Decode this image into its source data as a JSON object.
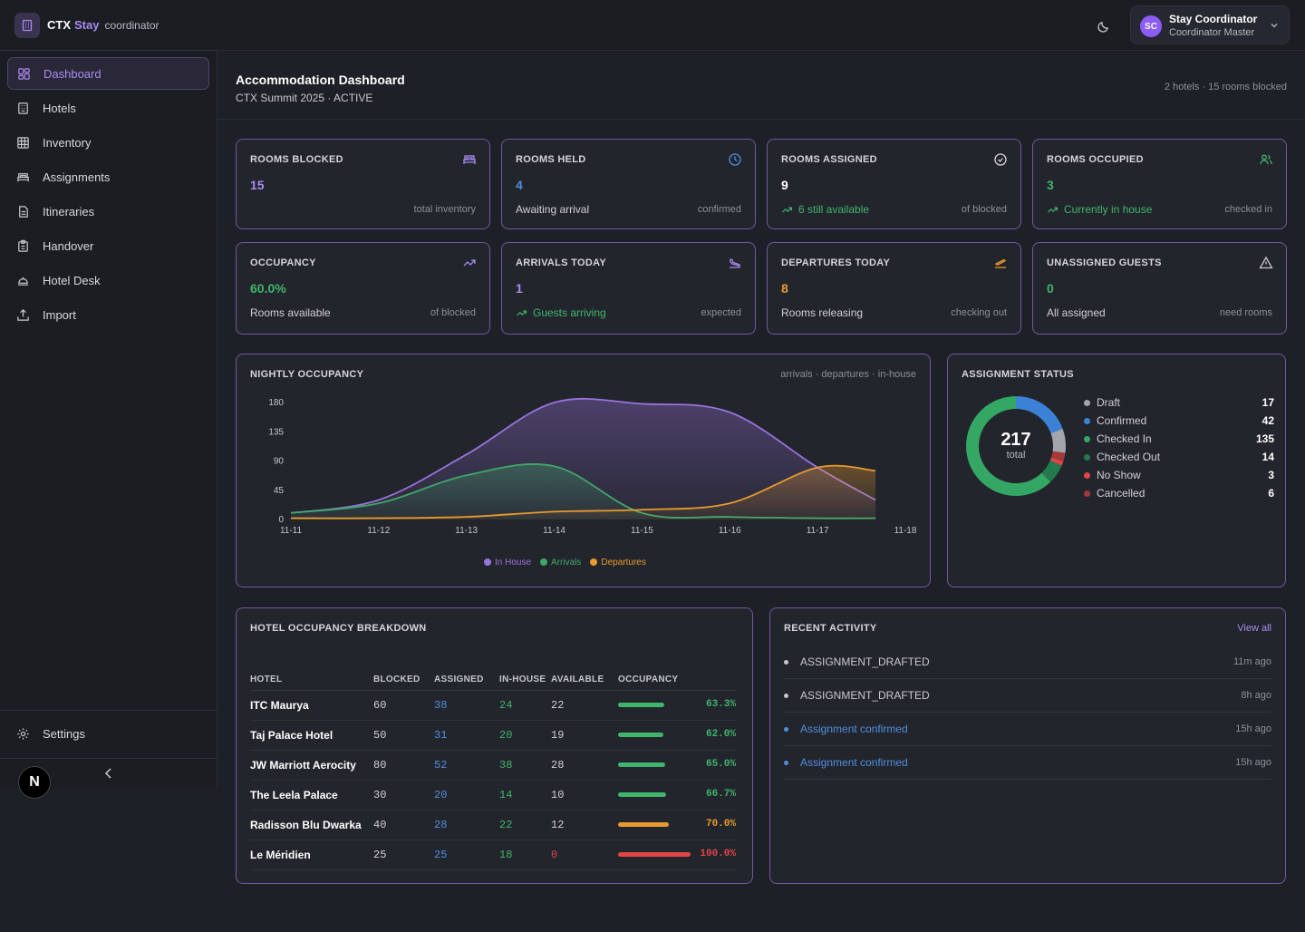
{
  "brand": {
    "ctx": "CTX",
    "stay": "Stay",
    "role": "coordinator"
  },
  "user": {
    "initials": "SC",
    "name": "Stay Coordinator",
    "role": "Coordinator Master"
  },
  "sidebar": {
    "items": [
      {
        "label": "Dashboard",
        "icon": "dashboard-icon",
        "active": true
      },
      {
        "label": "Hotels",
        "icon": "hotels-icon"
      },
      {
        "label": "Inventory",
        "icon": "grid-icon"
      },
      {
        "label": "Assignments",
        "icon": "bed-icon"
      },
      {
        "label": "Itineraries",
        "icon": "document-icon"
      },
      {
        "label": "Handover",
        "icon": "clipboard-icon"
      },
      {
        "label": "Hotel Desk",
        "icon": "bell-icon"
      },
      {
        "label": "Import",
        "icon": "upload-icon"
      }
    ],
    "settings_label": "Settings",
    "badge": "N"
  },
  "header": {
    "title": "Accommodation Dashboard",
    "subtitle": "CTX Summit 2025 · ACTIVE",
    "meta": "2 hotels · 15 rooms blocked"
  },
  "kpis": [
    {
      "label": "ROOMS BLOCKED",
      "value": "15",
      "desc": "",
      "note": "total inventory",
      "color": "#a98bf0",
      "icon": "bed-icon"
    },
    {
      "label": "ROOMS HELD",
      "value": "4",
      "desc": "Awaiting arrival",
      "note": "confirmed",
      "color": "#4f8fde",
      "icon": "clock-icon"
    },
    {
      "label": "ROOMS ASSIGNED",
      "value": "9",
      "desc": "6 still available",
      "note": "of blocked",
      "color": "#ffffff",
      "icon": "check-circle-icon",
      "trend": true
    },
    {
      "label": "ROOMS OCCUPIED",
      "value": "3",
      "desc": "Currently in house",
      "note": "checked in",
      "color": "#3fb66b",
      "icon": "users-icon",
      "trend": true
    },
    {
      "label": "OCCUPANCY",
      "value": "60.0%",
      "desc": "Rooms available",
      "note": "of blocked",
      "color": "#3fb66b",
      "icon": "trending-icon"
    },
    {
      "label": "ARRIVALS TODAY",
      "value": "1",
      "desc": "Guests arriving",
      "note": "expected",
      "color": "#a98bf0",
      "icon": "plane-landing-icon",
      "trend": true
    },
    {
      "label": "DEPARTURES TODAY",
      "value": "8",
      "desc": "Rooms releasing",
      "note": "checking out",
      "color": "#e89b2c",
      "icon": "plane-takeoff-icon"
    },
    {
      "label": "UNASSIGNED GUESTS",
      "value": "0",
      "desc": "All assigned",
      "note": "need rooms",
      "color": "#3fb66b",
      "icon": "alert-icon"
    }
  ],
  "occupancy_chart": {
    "title": "NIGHTLY OCCUPANCY",
    "meta": "arrivals · departures · in-house"
  },
  "chart_data": {
    "type": "area",
    "x": [
      "11-11",
      "11-12",
      "11-13",
      "11-14",
      "11-15",
      "11-16",
      "11-17",
      "11-18"
    ],
    "ylim": [
      0,
      180
    ],
    "yticks": [
      "0",
      "45",
      "90",
      "135",
      "180"
    ],
    "series": [
      {
        "name": "In House",
        "color": "#9a74de",
        "values": [
          10,
          30,
          100,
          180,
          178,
          165,
          80,
          30
        ]
      },
      {
        "name": "Arrivals",
        "color": "#3fa869",
        "values": [
          10,
          25,
          68,
          82,
          10,
          4,
          2,
          2
        ]
      },
      {
        "name": "Departures",
        "color": "#e89b2c",
        "values": [
          2,
          2,
          4,
          12,
          15,
          25,
          80,
          75
        ]
      }
    ]
  },
  "assignment_status": {
    "title": "ASSIGNMENT STATUS",
    "total": "217",
    "total_label": "total",
    "items": [
      {
        "label": "Draft",
        "count": "17",
        "value": 17,
        "color": "#a3a5ad"
      },
      {
        "label": "Confirmed",
        "count": "42",
        "value": 42,
        "color": "#3b82d6"
      },
      {
        "label": "Checked In",
        "count": "135",
        "value": 135,
        "color": "#34a765"
      },
      {
        "label": "Checked Out",
        "count": "14",
        "value": 14,
        "color": "#237a4c"
      },
      {
        "label": "No Show",
        "count": "3",
        "value": 3,
        "color": "#e24545"
      },
      {
        "label": "Cancelled",
        "count": "6",
        "value": 6,
        "color": "#a33a3a"
      }
    ]
  },
  "hotel_table": {
    "title": "HOTEL OCCUPANCY BREAKDOWN",
    "columns": [
      "HOTEL",
      "BLOCKED",
      "ASSIGNED",
      "IN-HOUSE",
      "AVAILABLE",
      "OCCUPANCY"
    ],
    "rows": [
      {
        "hotel": "ITC Maurya",
        "blocked": "60",
        "assigned": "38",
        "inhouse": "24",
        "available": "22",
        "occupancy": "63.3%",
        "occ": 0.633,
        "color": "#3fb66b"
      },
      {
        "hotel": "Taj Palace Hotel",
        "blocked": "50",
        "assigned": "31",
        "inhouse": "20",
        "available": "19",
        "occupancy": "62.0%",
        "occ": 0.62,
        "color": "#3fb66b"
      },
      {
        "hotel": "JW Marriott Aerocity",
        "blocked": "80",
        "assigned": "52",
        "inhouse": "38",
        "available": "28",
        "occupancy": "65.0%",
        "occ": 0.65,
        "color": "#3fb66b"
      },
      {
        "hotel": "The Leela Palace",
        "blocked": "30",
        "assigned": "20",
        "inhouse": "14",
        "available": "10",
        "occupancy": "66.7%",
        "occ": 0.667,
        "color": "#3fb66b"
      },
      {
        "hotel": "Radisson Blu Dwarka",
        "blocked": "40",
        "assigned": "28",
        "inhouse": "22",
        "available": "12",
        "occupancy": "70.0%",
        "occ": 0.7,
        "color": "#e89b2c"
      },
      {
        "hotel": "Le Méridien",
        "blocked": "25",
        "assigned": "25",
        "inhouse": "18",
        "available": "0",
        "occupancy": "100.0%",
        "occ": 1.0,
        "color": "#e24545"
      }
    ]
  },
  "activity": {
    "title": "RECENT ACTIVITY",
    "view_all": "View all",
    "items": [
      {
        "text": "ASSIGNMENT_DRAFTED",
        "time": "11m ago",
        "color": "#c8c9ce"
      },
      {
        "text": "ASSIGNMENT_DRAFTED",
        "time": "8h ago",
        "color": "#c8c9ce"
      },
      {
        "text": "Assignment confirmed",
        "time": "15h ago",
        "color": "#4f8fde"
      },
      {
        "text": "Assignment confirmed",
        "time": "15h ago",
        "color": "#4f8fde"
      }
    ]
  }
}
